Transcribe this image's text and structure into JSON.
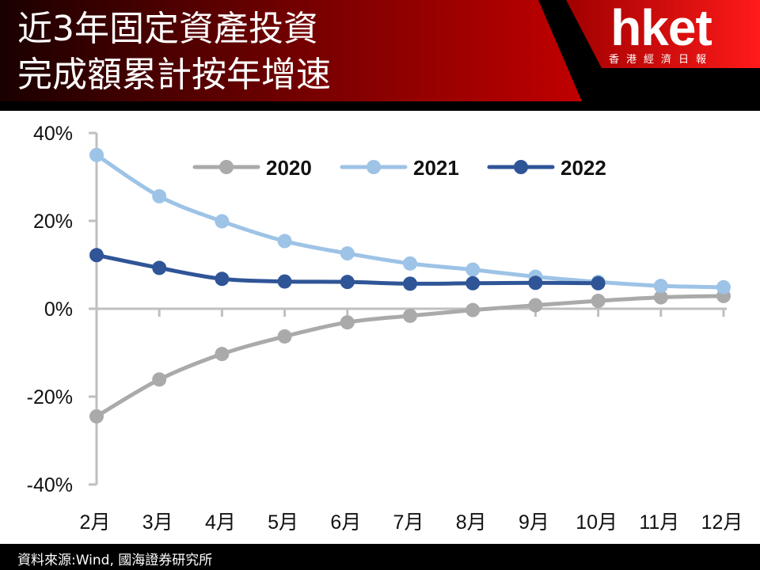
{
  "header": {
    "title_line1": "近3年固定資產投資",
    "title_line2": "完成額累計按年增速",
    "logo_main": "hket",
    "logo_sub": "香港經濟日報"
  },
  "footer": {
    "source": "資料來源:Wind, 國海證券研究所"
  },
  "colors": {
    "header_red": "#c00000",
    "header_black": "#000000",
    "s2020": "#aaaaaa",
    "s2021": "#9dc3e6",
    "s2022": "#2f5597",
    "axis": "#bfbfbf"
  },
  "chart_data": {
    "type": "line",
    "title": "近3年固定資產投資完成額累計按年增速",
    "xlabel": "",
    "ylabel": "",
    "categories": [
      "2月",
      "3月",
      "4月",
      "5月",
      "6月",
      "7月",
      "8月",
      "9月",
      "10月",
      "11月",
      "12月"
    ],
    "y_ticks": [
      "40%",
      "20%",
      "0%",
      "-20%",
      "-40%"
    ],
    "ylim": [
      -40,
      40
    ],
    "grid": false,
    "legend_position": "top-right",
    "series": [
      {
        "name": "2020",
        "color": "#aaaaaa",
        "values": [
          -24.5,
          -16.1,
          -10.3,
          -6.3,
          -3.1,
          -1.6,
          -0.3,
          0.8,
          1.8,
          2.6,
          2.9
        ]
      },
      {
        "name": "2021",
        "color": "#9dc3e6",
        "values": [
          35.0,
          25.6,
          19.9,
          15.4,
          12.6,
          10.3,
          8.9,
          7.3,
          6.1,
          5.2,
          4.9
        ]
      },
      {
        "name": "2022",
        "color": "#2f5597",
        "values": [
          12.2,
          9.3,
          6.8,
          6.2,
          6.1,
          5.7,
          5.8,
          5.9,
          5.8,
          null,
          null
        ]
      }
    ]
  }
}
